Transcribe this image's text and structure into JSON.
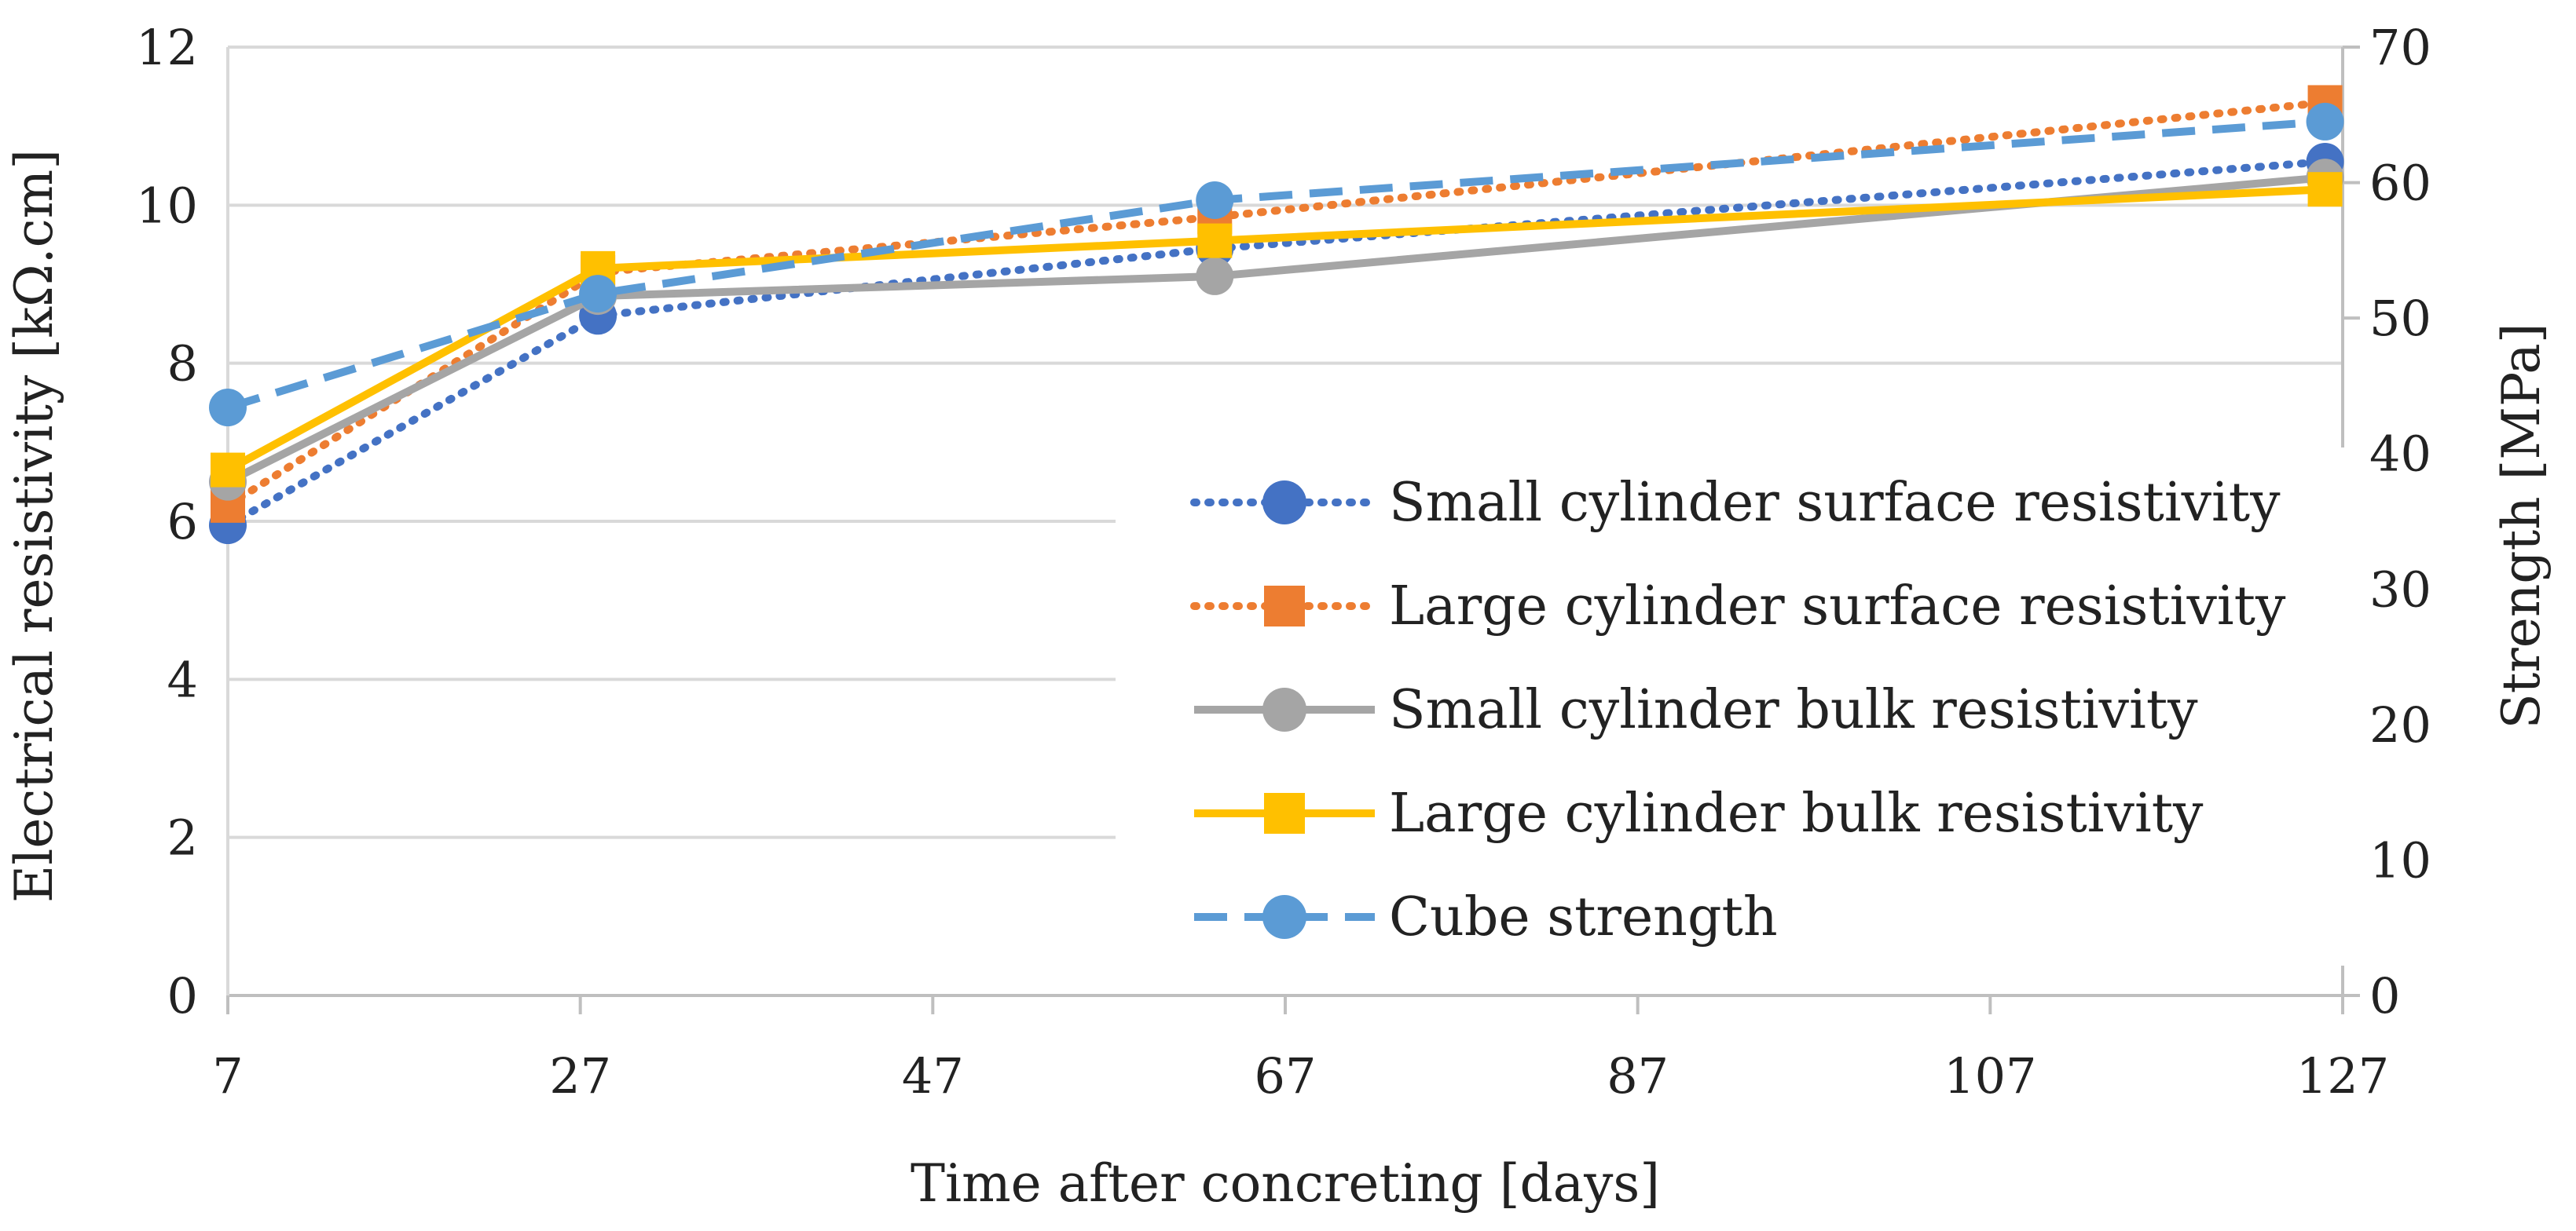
{
  "chart_data": {
    "type": "line",
    "title": "",
    "xlabel": "Time after concreting [days]",
    "ylabel": "Electrical resistivity [kΩ.cm]",
    "y2label": "Strength [MPa]",
    "xlim": [
      7,
      127
    ],
    "ylim": [
      0,
      12
    ],
    "y2lim": [
      0,
      70
    ],
    "x_ticks": [
      "7",
      "27",
      "47",
      "67",
      "87",
      "107",
      "127"
    ],
    "y_ticks": [
      "0",
      "2",
      "4",
      "6",
      "8",
      "10",
      "12"
    ],
    "y2_ticks": [
      "0",
      "10",
      "20",
      "30",
      "40",
      "50",
      "60",
      "70"
    ],
    "grid": true,
    "legend_position": "center-right",
    "series": [
      {
        "name": "Small cylinder surface resistivity",
        "axis": "left",
        "color": "#4472C4",
        "line": "dotted",
        "marker": "circle",
        "x": [
          7,
          28,
          63,
          126
        ],
        "y": [
          5.95,
          8.6,
          9.45,
          10.55
        ]
      },
      {
        "name": "Large cylinder surface resistivity",
        "axis": "left",
        "color": "#ED7D31",
        "line": "dotted",
        "marker": "square",
        "x": [
          7,
          28,
          63,
          126
        ],
        "y": [
          6.2,
          9.15,
          9.85,
          11.3
        ]
      },
      {
        "name": "Small cylinder bulk resistivity",
        "axis": "left",
        "color": "#A5A5A5",
        "line": "solid",
        "marker": "circle",
        "x": [
          7,
          28,
          63,
          126
        ],
        "y": [
          6.5,
          8.85,
          9.1,
          10.35
        ]
      },
      {
        "name": "Large cylinder bulk resistivity",
        "axis": "left",
        "color": "#FFC000",
        "line": "solid",
        "marker": "square",
        "x": [
          7,
          28,
          63,
          126
        ],
        "y": [
          6.65,
          9.2,
          9.55,
          10.2
        ]
      },
      {
        "name": "Cube strength",
        "axis": "right",
        "color": "#5B9BD5",
        "line": "dashed",
        "marker": "circle",
        "x": [
          7,
          28,
          63,
          126
        ],
        "y": [
          43.4,
          51.8,
          58.7,
          64.5
        ]
      }
    ]
  }
}
